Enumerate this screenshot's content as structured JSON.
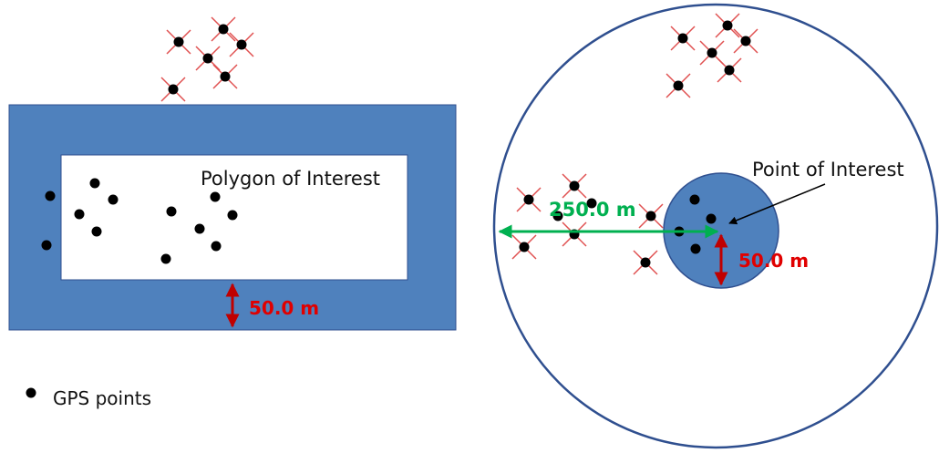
{
  "left_panel": {
    "polygon_label": "Polygon of Interest",
    "buffer_label": "50.0 m"
  },
  "right_panel": {
    "point_label": "Point of Interest",
    "inner_radius_label": "50.0 m",
    "outer_radius_label": "250.0 m"
  },
  "legend": {
    "gps_label": "GPS points"
  },
  "colors": {
    "buffer_fill": "#4F81BD",
    "outline": "#2F4F8F",
    "point": "#000000",
    "excluded_cross": "#E05050",
    "red_arrow": "#C00000",
    "green_arrow": "#00B050",
    "label_red": "#E00000"
  }
}
